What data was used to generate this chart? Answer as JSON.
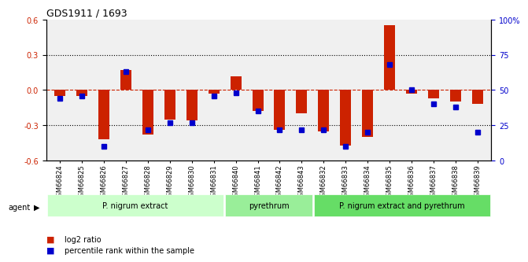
{
  "title": "GDS1911 / 1693",
  "samples": [
    "GSM66824",
    "GSM66825",
    "GSM66826",
    "GSM66827",
    "GSM66828",
    "GSM66829",
    "GSM66830",
    "GSM66831",
    "GSM66840",
    "GSM66841",
    "GSM66842",
    "GSM66843",
    "GSM66832",
    "GSM66833",
    "GSM66834",
    "GSM66835",
    "GSM66836",
    "GSM66837",
    "GSM66838",
    "GSM66839"
  ],
  "log2_ratio": [
    -0.05,
    -0.05,
    -0.42,
    0.17,
    -0.38,
    -0.25,
    -0.26,
    -0.03,
    0.12,
    -0.18,
    -0.34,
    -0.2,
    -0.35,
    -0.47,
    -0.4,
    0.55,
    -0.03,
    -0.07,
    -0.1,
    -0.12
  ],
  "percentile": [
    44,
    46,
    10,
    63,
    22,
    27,
    27,
    46,
    48,
    35,
    22,
    22,
    22,
    10,
    20,
    68,
    50,
    40,
    38,
    20
  ],
  "bar_color": "#cc2200",
  "dot_color": "#0000cc",
  "ylim_left": [
    -0.6,
    0.6
  ],
  "ylim_right": [
    0,
    100
  ],
  "yticks_left": [
    -0.6,
    -0.3,
    0.0,
    0.3,
    0.6
  ],
  "yticks_right": [
    0,
    25,
    50,
    75,
    100
  ],
  "ytick_labels_right": [
    "0",
    "25",
    "50",
    "75",
    "100%"
  ],
  "hline_y": 0.0,
  "dotted_lines": [
    -0.3,
    0.3
  ],
  "groups": [
    {
      "label": "P. nigrum extract",
      "start": 0,
      "end": 8,
      "color": "#ccffcc"
    },
    {
      "label": "pyrethrum",
      "start": 8,
      "end": 12,
      "color": "#99ee99"
    },
    {
      "label": "P. nigrum extract and pyrethrum",
      "start": 12,
      "end": 20,
      "color": "#66dd66"
    }
  ],
  "group_row_label": "agent",
  "legend_items": [
    {
      "label": "log2 ratio",
      "color": "#cc2200"
    },
    {
      "label": "percentile rank within the sample",
      "color": "#0000cc"
    }
  ],
  "bar_width": 0.5,
  "background_color": "#ffffff",
  "axis_bg": "#f0f0f0",
  "grid_color": "#cccccc"
}
